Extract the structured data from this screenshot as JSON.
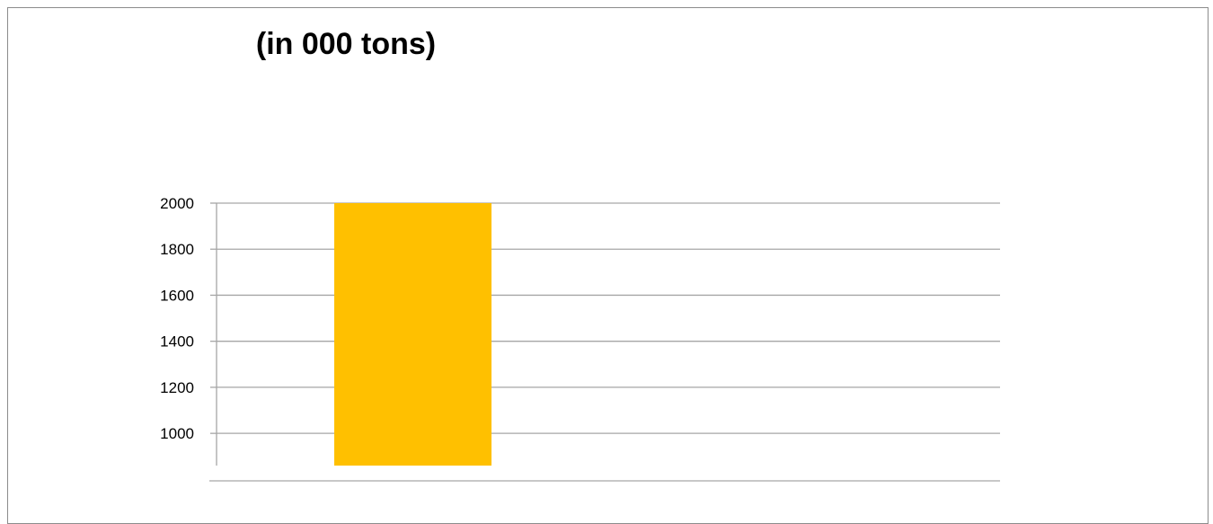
{
  "chart_data": {
    "type": "bar",
    "title": "(in 000 tons)",
    "categories": [
      ""
    ],
    "values": [
      2000
    ],
    "xlabel": "",
    "ylabel": "",
    "ylim": [
      860,
      2000
    ],
    "yticks": [
      1000,
      1200,
      1400,
      1600,
      1800,
      2000
    ],
    "grid": true,
    "legend": "none",
    "colors": {
      "bar": "#FFC000",
      "grid": "#a6a6a6",
      "frame": "#8c8c8c"
    }
  }
}
